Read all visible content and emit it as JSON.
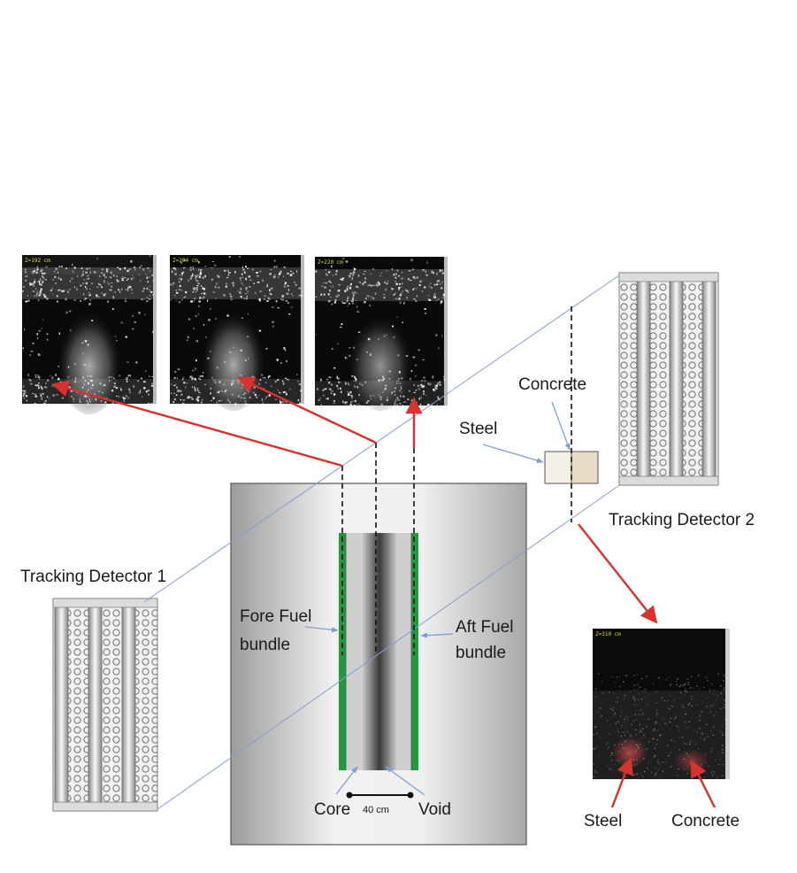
{
  "labels": {
    "tracking_detector_1": "Tracking Detector 1",
    "tracking_detector_2": "Tracking Detector 2",
    "concrete_top": "Concrete",
    "steel_top": "Steel",
    "fore_fuel_line1": "Fore Fuel",
    "fore_fuel_line2": "bundle",
    "aft_fuel_line1": "Aft Fuel",
    "aft_fuel_line2": "bundle",
    "core": "Core",
    "void": "Void",
    "scale": "40 cm",
    "steel_bottom": "Steel",
    "concrete_bottom": "Concrete"
  },
  "images": [
    {
      "z_label": "Z=192 cm"
    },
    {
      "z_label": "Z=204 cm"
    },
    {
      "z_label": "Z=220 cm"
    },
    {
      "z_label": "Z=310 cm"
    }
  ],
  "colors": {
    "arrow_red": "#d8322e",
    "guide_blue": "#7f9fcf",
    "fuel_green": "#1f9a3c",
    "steel_fill": "#f4efe4",
    "concrete_fill": "#e9dcc6"
  },
  "icons": [
    "red-arrow",
    "blue-arrow",
    "detector-tube",
    "scale-bar"
  ]
}
